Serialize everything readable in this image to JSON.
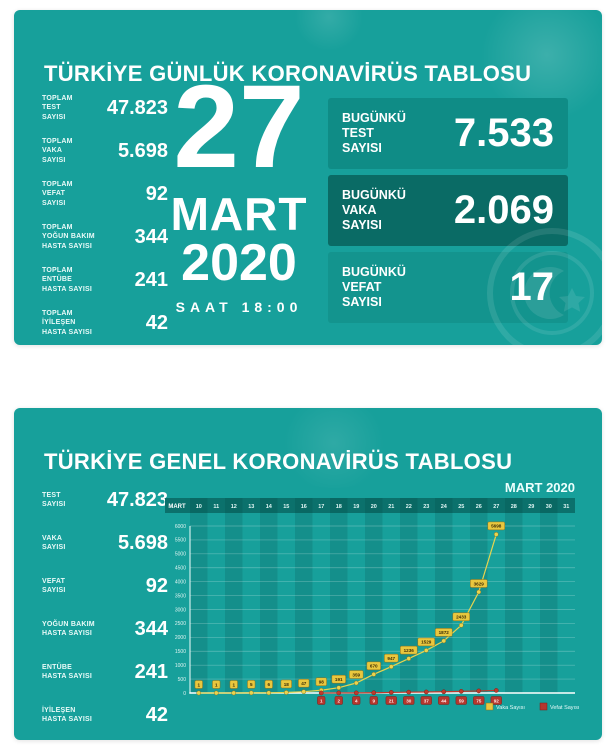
{
  "colors": {
    "background_teal": "#17a09b",
    "box_dark": "#0f8c86",
    "box_darkest": "#0a6b65",
    "box_mid": "#13948e",
    "chart_header_strip": "#0b716c",
    "case_yellow": "#e9c73e",
    "death_red": "#b5372e",
    "text_white": "#ffffff"
  },
  "daily_panel": {
    "title": "TÜRKİYE GÜNLÜK KORONAVİRÜS TABLOSU",
    "totals": [
      {
        "label": "TOPLAM\nTEST\nSAYISI",
        "value": "47.823"
      },
      {
        "label": "TOPLAM\nVAKA\nSAYISI",
        "value": "5.698"
      },
      {
        "label": "TOPLAM\nVEFAT\nSAYISI",
        "value": "92"
      },
      {
        "label": "TOPLAM\nYOĞUN BAKIM\nHASTA SAYISI",
        "value": "344"
      },
      {
        "label": "TOPLAM\nENTÜBE\nHASTA SAYISI",
        "value": "241"
      },
      {
        "label": "TOPLAM\nİYİLEŞEN\nHASTA SAYISI",
        "value": "42"
      }
    ],
    "date": {
      "day": "27",
      "month": "MART",
      "year": "2020",
      "time": "SAAT 18:00"
    },
    "today": [
      {
        "label": "BUGÜNKÜ\nTEST\nSAYISI",
        "value": "7.533"
      },
      {
        "label": "BUGÜNKÜ\nVAKA\nSAYISI",
        "value": "2.069"
      },
      {
        "label": "BUGÜNKÜ\nVEFAT\nSAYISI",
        "value": "17"
      }
    ]
  },
  "general_panel": {
    "title": "TÜRKİYE GENEL KORONAVİRÜS TABLOSU",
    "totals": [
      {
        "label": "TEST\nSAYISI",
        "value": "47.823"
      },
      {
        "label": "VAKA\nSAYISI",
        "value": "5.698"
      },
      {
        "label": "VEFAT\nSAYISI",
        "value": "92"
      },
      {
        "label": "YOĞUN BAKIM\nHASTA SAYISI",
        "value": "344"
      },
      {
        "label": "ENTÜBE\nHASTA SAYISI",
        "value": "241"
      },
      {
        "label": "İYİLEŞEN\nHASTA SAYISI",
        "value": "42"
      }
    ]
  },
  "chart_data": {
    "type": "line",
    "title": "TÜRKİYE GENEL KORONAVİRÜS TABLOSU",
    "period_label": "MART 2020",
    "month_label": "MART",
    "x": [
      10,
      11,
      12,
      13,
      14,
      15,
      16,
      17,
      18,
      19,
      20,
      21,
      22,
      23,
      24,
      25,
      26,
      27,
      28,
      29,
      30,
      31
    ],
    "series": [
      {
        "name": "Vaka Sayısı",
        "color": "#e8d44f",
        "badge_fill": "#e9c73e",
        "badge_border": "#8a6f1c",
        "badge_text": "#3b2e06",
        "badge_position": "above",
        "values": [
          1,
          1,
          1,
          5,
          6,
          18,
          47,
          98,
          191,
          359,
          670,
          947,
          1236,
          1529,
          1872,
          2433,
          3629,
          5698,
          null,
          null,
          null,
          null
        ]
      },
      {
        "name": "Vefat Sayısı",
        "color": "#c0392b",
        "badge_fill": "#b5372e",
        "badge_border": "#7c1f19",
        "badge_text": "#ffeae8",
        "badge_position": "below",
        "values": [
          null,
          null,
          null,
          null,
          null,
          null,
          null,
          1,
          2,
          4,
          9,
          21,
          30,
          37,
          44,
          59,
          75,
          92,
          null,
          null,
          null,
          null
        ]
      }
    ],
    "xlabel": "",
    "ylabel": "",
    "ylim": [
      0,
      6000
    ],
    "ytick_step": 500,
    "grid": true,
    "legend_position": "bottom-right"
  }
}
